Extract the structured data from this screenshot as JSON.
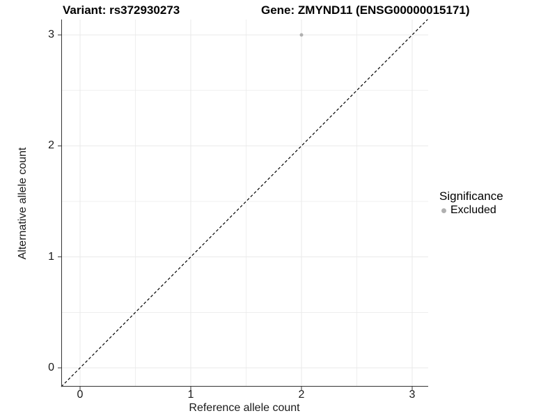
{
  "chart_data": {
    "type": "scatter",
    "title_variant": "Variant: rs372930273",
    "title_gene": "Gene: ZMYND11 (ENSG00000015171)",
    "xlabel": "Reference allele count",
    "ylabel": "Alternative allele count",
    "x_ticks": [
      0,
      1,
      2,
      3
    ],
    "y_ticks": [
      0,
      1,
      2,
      3
    ],
    "x_tick_labels": [
      "0",
      "1",
      "2",
      "3"
    ],
    "y_tick_labels": [
      "0",
      "1",
      "2",
      "3"
    ],
    "minor_ticks": [
      0.5,
      1.5,
      2.5
    ],
    "xlim": [
      -0.17,
      3.14
    ],
    "ylim": [
      -0.17,
      3.14
    ],
    "grid": true,
    "identity_line": {
      "style": "dashed",
      "color": "#000000",
      "from": [
        -0.17,
        -0.17
      ],
      "to": [
        3.14,
        3.14
      ]
    },
    "series": [
      {
        "name": "Excluded",
        "color": "#b0b0b0",
        "points": [
          [
            2,
            3
          ]
        ]
      }
    ],
    "legend": {
      "title": "Significance",
      "position": "right",
      "entries": [
        {
          "label": "Excluded",
          "color": "#b0b0b0",
          "marker": "circle"
        }
      ]
    }
  },
  "colors": {
    "grid": "#e9e9e9",
    "axis": "#333333",
    "marker": "#b0b0b0",
    "text": "#000000"
  }
}
